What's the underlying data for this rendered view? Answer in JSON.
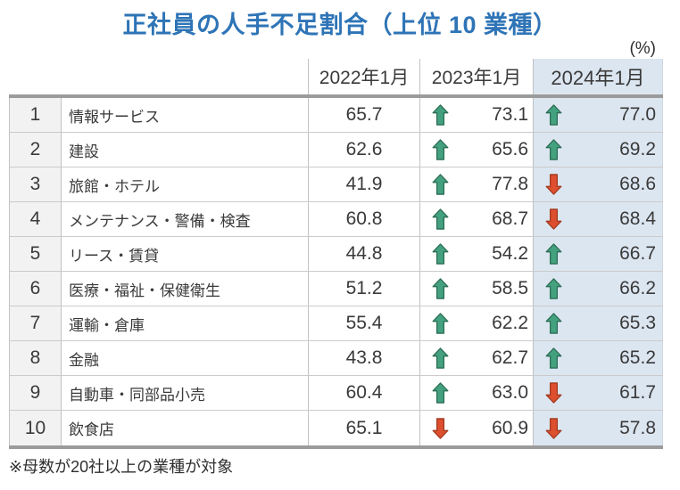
{
  "chart_data": {
    "type": "table",
    "title": "正社員の人手不足割合（上位 10 業種）",
    "unit_label": "(%)",
    "columns": [
      "2022年1月",
      "2023年1月",
      "2024年1月"
    ],
    "rows": [
      {
        "rank": "1",
        "industry": "情報サービス",
        "values": {
          "2022": 65.7,
          "2023": 73.1,
          "2024": 77.0
        },
        "trend_2023": "up",
        "trend_2024": "up"
      },
      {
        "rank": "2",
        "industry": "建設",
        "values": {
          "2022": 62.6,
          "2023": 65.6,
          "2024": 69.2
        },
        "trend_2023": "up",
        "trend_2024": "up"
      },
      {
        "rank": "3",
        "industry": "旅館・ホテル",
        "values": {
          "2022": 41.9,
          "2023": 77.8,
          "2024": 68.6
        },
        "trend_2023": "up",
        "trend_2024": "down"
      },
      {
        "rank": "4",
        "industry": "メンテナンス・警備・検査",
        "values": {
          "2022": 60.8,
          "2023": 68.7,
          "2024": 68.4
        },
        "trend_2023": "up",
        "trend_2024": "down"
      },
      {
        "rank": "5",
        "industry": "リース・賃貸",
        "values": {
          "2022": 44.8,
          "2023": 54.2,
          "2024": 66.7
        },
        "trend_2023": "up",
        "trend_2024": "up"
      },
      {
        "rank": "6",
        "industry": "医療・福祉・保健衛生",
        "values": {
          "2022": 51.2,
          "2023": 58.5,
          "2024": 66.2
        },
        "trend_2023": "up",
        "trend_2024": "up"
      },
      {
        "rank": "7",
        "industry": "運輸・倉庫",
        "values": {
          "2022": 55.4,
          "2023": 62.2,
          "2024": 65.3
        },
        "trend_2023": "up",
        "trend_2024": "up"
      },
      {
        "rank": "8",
        "industry": "金融",
        "values": {
          "2022": 43.8,
          "2023": 62.7,
          "2024": 65.2
        },
        "trend_2023": "up",
        "trend_2024": "up"
      },
      {
        "rank": "9",
        "industry": "自動車・同部品小売",
        "values": {
          "2022": 60.4,
          "2023": 63.0,
          "2024": 61.7
        },
        "trend_2023": "up",
        "trend_2024": "down"
      },
      {
        "rank": "10",
        "industry": "飲食店",
        "values": {
          "2022": 65.1,
          "2023": 60.9,
          "2024": 57.8
        },
        "trend_2023": "down",
        "trend_2024": "down"
      }
    ],
    "footnote": "※母数が20社以上の業種が対象",
    "layout": {
      "highlighted_column": "2024年1月",
      "legend": "none",
      "grid": "on"
    }
  },
  "colors": {
    "title_blue": "#2E74B6",
    "highlight_column_bg": "#DCE6F1",
    "rank_column_bg": "#F2F2F2",
    "thick_border_gray": "#9B9B9B",
    "up_arrow_green": "#44A17F",
    "up_arrow_outline": "#2C6E55",
    "down_arrow_red": "#DD4F2E",
    "down_arrow_outline": "#A23A20"
  },
  "icons": {
    "up": "up-arrow-icon",
    "down": "down-arrow-icon"
  }
}
